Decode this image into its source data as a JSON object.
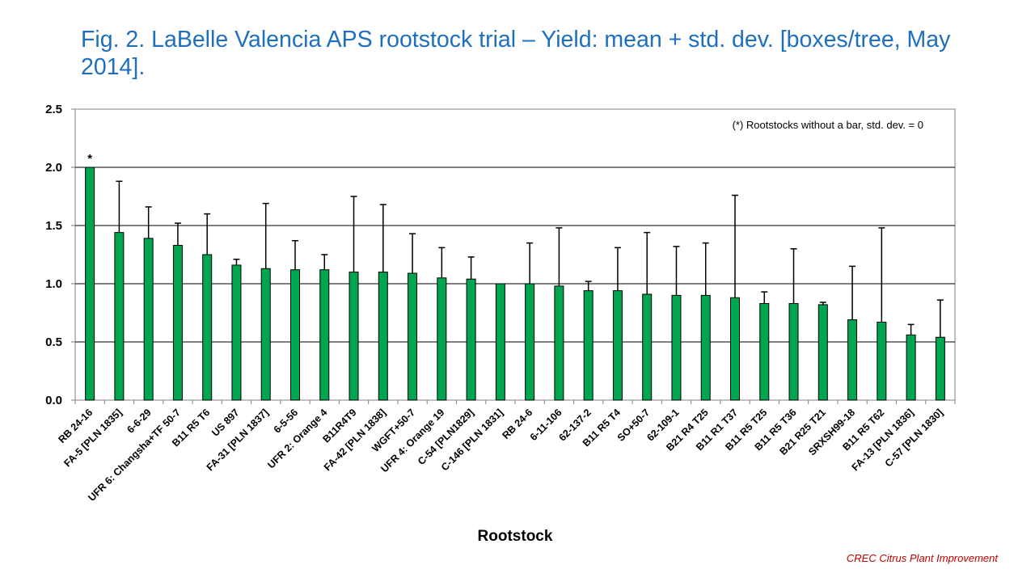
{
  "slide": {
    "title": "Fig. 2. LaBelle Valencia APS rootstock trial – Yield: mean + std. dev. [boxes/tree, May 2014].",
    "footer": "CREC Citrus Plant Improvement"
  },
  "colors": {
    "bar": "#00a550",
    "bar_border": "#000000",
    "title": "#1f6fbf",
    "footer": "#c00000"
  },
  "chart_data": {
    "type": "bar",
    "title": "Fig. 2. LaBelle Valencia APS rootstock trial – Yield: mean + std. dev. [boxes/tree, May 2014].",
    "xlabel": "Rootstock",
    "ylabel": "",
    "ylim": [
      0,
      2.5
    ],
    "yticks": [
      "0.0",
      "0.5",
      "1.0",
      "1.5",
      "2.0",
      "2.5"
    ],
    "grid": true,
    "note": "(*) Rootstocks without a bar, std. dev. = 0",
    "star_label": "*",
    "categories": [
      "RB 24-16",
      "FA-5 [PLN 1835]",
      "6-6-29",
      "UFR 6: Changsha+TF 50-7",
      "B11 R5 T6",
      "US 897",
      "FA-31 [PLN 1837]",
      "6-5-56",
      "UFR 2: Orange 4",
      "B11R4T9",
      "FA-42 [PLN 1838]",
      "WGFT+50-7",
      "UFR 4: Orange 19",
      "C-54 [PLN1829]",
      "C-146 [PLN 1831]",
      "RB 24-6",
      "6-11-106",
      "62-137-2",
      "B11 R5 T4",
      "SO+50-7",
      "62-109-1",
      "B21 R4 T25",
      "B11 R1 T37",
      "B11 R5 T25",
      "B11 R5 T36",
      "B21 R25 T21",
      "SRXSH99-18",
      "B11 R5 T62",
      "FA-13 [PLN 1836]",
      "C-57 [PLN 1830]"
    ],
    "values": [
      2.0,
      1.44,
      1.39,
      1.33,
      1.25,
      1.16,
      1.13,
      1.12,
      1.12,
      1.1,
      1.1,
      1.09,
      1.05,
      1.04,
      1.0,
      1.0,
      0.98,
      0.94,
      0.94,
      0.91,
      0.9,
      0.9,
      0.88,
      0.83,
      0.83,
      0.82,
      0.69,
      0.67,
      0.56,
      0.54
    ],
    "std_dev": [
      0,
      0.44,
      0.27,
      0.19,
      0.35,
      0.05,
      0.56,
      0.25,
      0.13,
      0.65,
      0.58,
      0.34,
      0.26,
      0.19,
      0,
      0.35,
      0.5,
      0.08,
      0.37,
      0.53,
      0.42,
      0.45,
      0.88,
      0.1,
      0.47,
      0.02,
      0.46,
      0.81,
      0.09,
      0.32
    ],
    "starred": [
      "RB 24-16"
    ]
  }
}
